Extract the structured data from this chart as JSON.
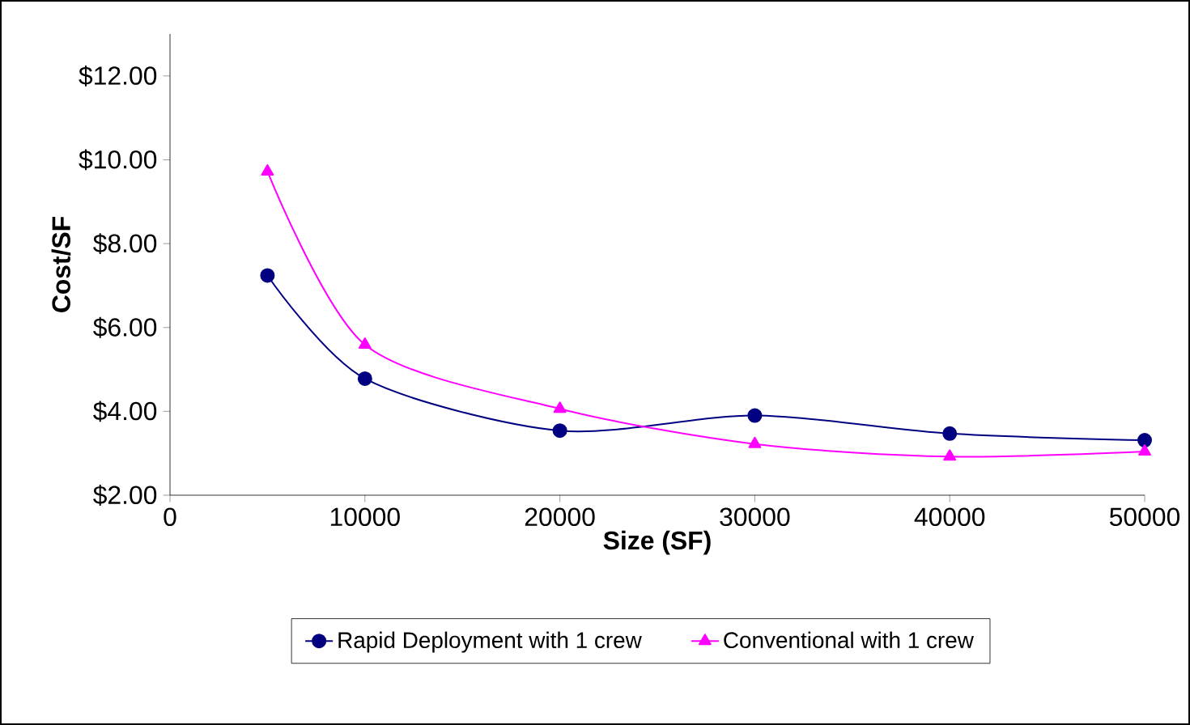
{
  "chart_data": {
    "type": "line",
    "xlabel": "Size (SF)",
    "ylabel": "Cost/SF",
    "x": [
      5000,
      10000,
      20000,
      30000,
      40000,
      50000
    ],
    "series": [
      {
        "name": "Rapid Deployment with 1 crew",
        "color": "#000080",
        "marker": "circle",
        "values": [
          7.24,
          4.78,
          3.54,
          3.9,
          3.47,
          3.31
        ]
      },
      {
        "name": "Conventional with 1 crew",
        "color": "#ff00ff",
        "marker": "triangle",
        "values": [
          9.72,
          5.59,
          4.06,
          3.22,
          2.92,
          3.04
        ]
      }
    ],
    "xlim": [
      0,
      50000
    ],
    "xticks": [
      0,
      10000,
      20000,
      30000,
      40000,
      50000
    ],
    "ylim": [
      2,
      13
    ],
    "yticks": [
      {
        "value": 2,
        "label": "$2.00"
      },
      {
        "value": 4,
        "label": "$4.00"
      },
      {
        "value": 6,
        "label": "$6.00"
      },
      {
        "value": 8,
        "label": "$8.00"
      },
      {
        "value": 10,
        "label": "$10.00"
      },
      {
        "value": 12,
        "label": "$12.00"
      }
    ],
    "grid": false,
    "legend": "bottom"
  }
}
